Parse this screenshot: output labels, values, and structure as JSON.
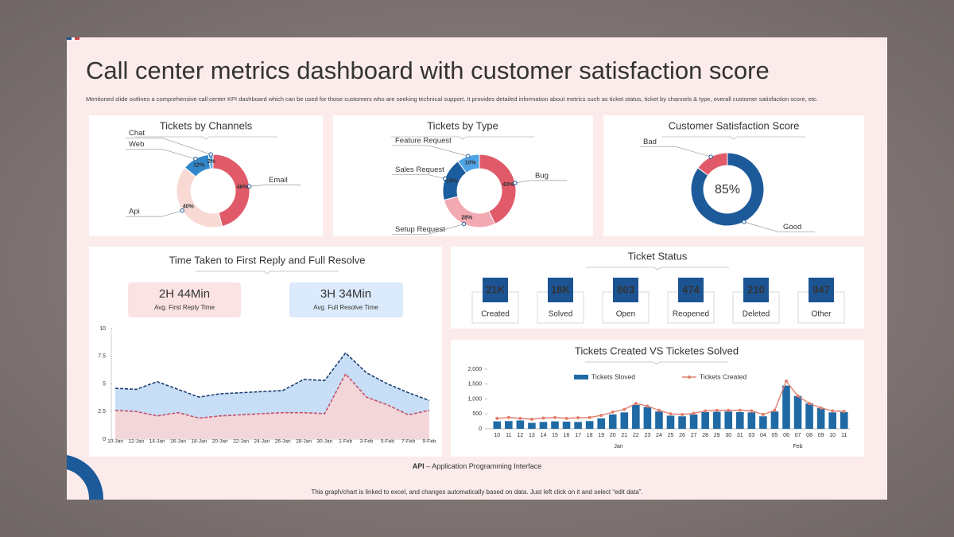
{
  "header": {
    "title": "Call center metrics dashboard with customer satisfaction score",
    "subtitle": "Mentioned slide outlines a comprehensive call center KPI dashboard which can be used for those customers who are seeking technical support. It provides detailed information about metrics such as ticket status, ticket by channels & type, overall customer satisfaction score, etc."
  },
  "chart_data": [
    {
      "type": "donut",
      "title": "Tickets by Channels",
      "categories": [
        "Email",
        "Api",
        "Web",
        "Chat"
      ],
      "values": [
        46,
        40,
        12,
        2
      ],
      "value_labels": [
        "46%",
        "40%",
        "12%",
        "2%"
      ],
      "colors": [
        "#e05a6a",
        "#f8d9d3",
        "#2f87c9",
        "#6bb3e6"
      ]
    },
    {
      "type": "donut",
      "title": "Tickets by Type",
      "categories": [
        "Bug",
        "Setup Request",
        "Sales Request",
        "Feature Request"
      ],
      "values": [
        43,
        28,
        19,
        10
      ],
      "value_labels": [
        "43%",
        "28%",
        "19%",
        "10%"
      ],
      "colors": [
        "#e05a6a",
        "#f2a9b2",
        "#1b5d9e",
        "#4ea4e4"
      ]
    },
    {
      "type": "donut",
      "title": "Customer Satisfaction Score",
      "categories": [
        "Good",
        "Bad"
      ],
      "values": [
        85,
        15
      ],
      "value_labels": [
        "85%",
        null
      ],
      "colors": [
        "#1c5a9a",
        "#e05a6a"
      ]
    },
    {
      "type": "area",
      "title": "Time Taken to First Reply and Full Resolve",
      "categories": [
        "10-Jan",
        "12-Jan",
        "14-Jan",
        "16-Jan",
        "18-Jan",
        "20-Jan",
        "22-Jan",
        "24-Jan",
        "26-Jan",
        "28-Jan",
        "30-Jan",
        "1-Feb",
        "3-Feb",
        "5-Feb",
        "7-Feb",
        "9-Feb"
      ],
      "series": [
        {
          "color": "#1e3f72",
          "fill": "#c4dcf6",
          "values": [
            4.6,
            4.5,
            5.2,
            4.5,
            3.8,
            4.1,
            4.2,
            4.3,
            4.4,
            5.4,
            5.3,
            7.8,
            6.0,
            5.0,
            4.2,
            3.5
          ]
        },
        {
          "color": "#c4506a",
          "fill": "#f6d5d8",
          "values": [
            2.6,
            2.5,
            2.1,
            2.4,
            1.9,
            2.1,
            2.2,
            2.3,
            2.4,
            2.4,
            2.3,
            5.9,
            3.8,
            3.1,
            2.2,
            2.6
          ]
        }
      ],
      "ylim": [
        0,
        10
      ],
      "yticks": [
        0,
        2.5,
        5,
        7.5,
        10
      ]
    },
    {
      "type": "bar",
      "title": "Tickets Created VS Ticketes Solved",
      "categories": [
        "10",
        "11",
        "12",
        "13",
        "14",
        "15",
        "16",
        "17",
        "18",
        "19",
        "20",
        "21",
        "22",
        "23",
        "24",
        "25",
        "26",
        "27",
        "28",
        "29",
        "30",
        "31",
        "03",
        "04",
        "05",
        "06",
        "07",
        "08",
        "09",
        "10",
        "11"
      ],
      "x_groups": [
        "Jan",
        "Feb"
      ],
      "series": [
        {
          "name": "Tickets Sloved",
          "type": "bar",
          "color": "#1f6aa5",
          "values": [
            250,
            260,
            280,
            200,
            230,
            250,
            240,
            230,
            260,
            350,
            480,
            550,
            800,
            730,
            580,
            440,
            420,
            480,
            560,
            570,
            580,
            560,
            550,
            420,
            580,
            1450,
            1100,
            850,
            700,
            550,
            560
          ]
        },
        {
          "name": "Tickets Created",
          "type": "line",
          "color": "#e08070",
          "values": [
            350,
            380,
            350,
            320,
            360,
            380,
            350,
            370,
            380,
            450,
            560,
            650,
            850,
            760,
            620,
            500,
            480,
            520,
            600,
            620,
            620,
            620,
            600,
            480,
            620,
            1600,
            1100,
            850,
            700,
            600,
            580
          ]
        }
      ],
      "ylim": [
        0,
        2000
      ],
      "yticks": [
        0,
        500,
        {
          "value": 1000,
          "label": "1,000"
        },
        {
          "value": 1500,
          "label": "1,500"
        },
        {
          "value": 2000,
          "label": "2,000"
        }
      ]
    }
  ],
  "time_kpis": [
    {
      "value": "2H  44Min",
      "label": "Avg. First Reply Time"
    },
    {
      "value": "3H  34Min",
      "label": "Avg. Full Resolve Time"
    }
  ],
  "ticket_status": {
    "title": "Ticket  Status",
    "items": [
      {
        "value": "21K",
        "label": "Created"
      },
      {
        "value": "18K",
        "label": "Solved"
      },
      {
        "value": "803",
        "label": "Open"
      },
      {
        "value": "474",
        "label": "Reopened"
      },
      {
        "value": "210",
        "label": "Deleted"
      },
      {
        "value": "947",
        "label": "Other"
      }
    ]
  },
  "footer": {
    "abbr": "API",
    "definition": " – Application Programming Interface",
    "note": "This graph/chart is linked to excel, and changes automatically based on data. Just left click on it and select “edit data”."
  }
}
